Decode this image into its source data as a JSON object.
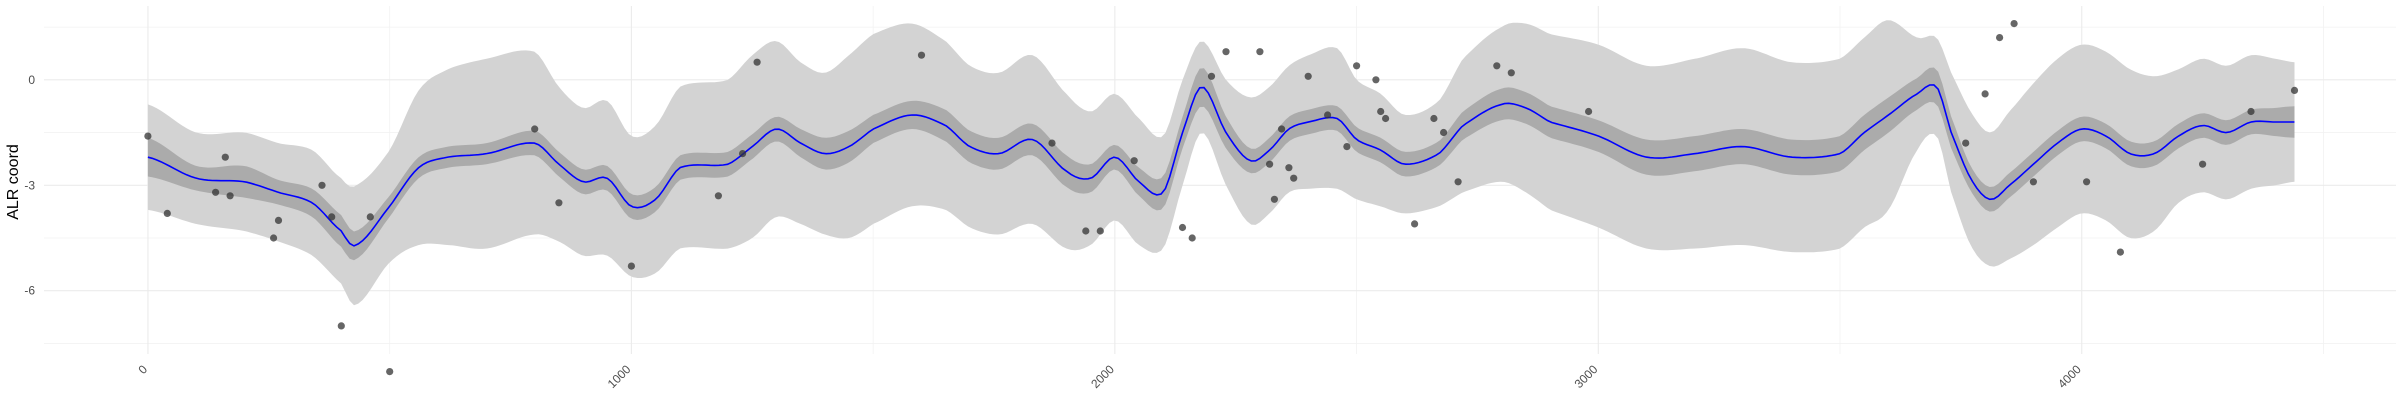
{
  "chart_data": {
    "type": "line",
    "title": "",
    "xlabel": "",
    "ylabel": "ALR coord",
    "xlim": [
      -215,
      4650
    ],
    "ylim": [
      -7.8,
      2.1
    ],
    "x_ticks": [
      0,
      1000,
      2000,
      3000,
      4000
    ],
    "x_tick_labels": [
      "0",
      "1000",
      "2000",
      "3000",
      "4000"
    ],
    "y_ticks": [
      0,
      -3,
      -6
    ],
    "y_tick_labels": [
      "0",
      "-3",
      "-6"
    ],
    "grid": true,
    "legend": "none",
    "smooth_color": "#0000ff",
    "inner_band_color": "#ababab",
    "outer_band_color": "#d3d3d3",
    "point_color": "#333333",
    "smooth": {
      "x": [
        0,
        100,
        200,
        270,
        340,
        400,
        430,
        500,
        560,
        620,
        700,
        800,
        850,
        900,
        950,
        1000,
        1050,
        1100,
        1200,
        1250,
        1300,
        1350,
        1400,
        1450,
        1500,
        1580,
        1650,
        1700,
        1760,
        1830,
        1900,
        1950,
        2000,
        2050,
        2100,
        2140,
        2180,
        2230,
        2280,
        2320,
        2360,
        2400,
        2460,
        2500,
        2550,
        2600,
        2670,
        2720,
        2800,
        2850,
        2900,
        3000,
        3100,
        3200,
        3300,
        3400,
        3500,
        3550,
        3600,
        3660,
        3700,
        3730,
        3770,
        3810,
        3850,
        3900,
        3950,
        4000,
        4050,
        4100,
        4150,
        4200,
        4250,
        4300,
        4350,
        4400,
        4440
      ],
      "y": [
        -2.2,
        -2.8,
        -2.9,
        -3.2,
        -3.5,
        -4.3,
        -4.7,
        -3.6,
        -2.5,
        -2.2,
        -2.1,
        -1.8,
        -2.4,
        -2.9,
        -2.8,
        -3.6,
        -3.4,
        -2.5,
        -2.4,
        -1.9,
        -1.4,
        -1.8,
        -2.1,
        -1.9,
        -1.4,
        -1.0,
        -1.3,
        -1.9,
        -2.1,
        -1.7,
        -2.6,
        -2.8,
        -2.2,
        -2.9,
        -3.2,
        -1.5,
        -0.2,
        -1.5,
        -2.3,
        -2.0,
        -1.4,
        -1.2,
        -1.1,
        -1.7,
        -2.0,
        -2.4,
        -2.1,
        -1.3,
        -0.7,
        -0.8,
        -1.2,
        -1.6,
        -2.2,
        -2.1,
        -1.9,
        -2.2,
        -2.1,
        -1.5,
        -1.0,
        -0.4,
        -0.2,
        -1.5,
        -2.8,
        -3.4,
        -3.0,
        -2.4,
        -1.8,
        -1.4,
        -1.6,
        -2.1,
        -2.1,
        -1.6,
        -1.3,
        -1.5,
        -1.2,
        -1.2,
        -1.2
      ],
      "inner_halfwidth": [
        0.55,
        0.35,
        0.45,
        0.35,
        0.4,
        0.45,
        0.4,
        0.3,
        0.3,
        0.3,
        0.3,
        0.35,
        0.35,
        0.35,
        0.35,
        0.35,
        0.35,
        0.35,
        0.35,
        0.35,
        0.35,
        0.4,
        0.45,
        0.45,
        0.4,
        0.4,
        0.45,
        0.45,
        0.45,
        0.45,
        0.45,
        0.4,
        0.35,
        0.4,
        0.45,
        0.45,
        0.55,
        0.45,
        0.35,
        0.35,
        0.35,
        0.35,
        0.35,
        0.35,
        0.35,
        0.35,
        0.35,
        0.4,
        0.45,
        0.45,
        0.45,
        0.45,
        0.5,
        0.5,
        0.5,
        0.5,
        0.5,
        0.5,
        0.5,
        0.45,
        0.5,
        0.45,
        0.35,
        0.35,
        0.35,
        0.35,
        0.35,
        0.35,
        0.35,
        0.35,
        0.35,
        0.35,
        0.35,
        0.35,
        0.35,
        0.4,
        0.45
      ],
      "outer_halfwidth": [
        1.5,
        1.3,
        1.4,
        1.4,
        1.5,
        1.5,
        1.7,
        1.6,
        2.2,
        2.5,
        2.7,
        2.6,
        2.2,
        2.1,
        2.2,
        2.0,
        2.1,
        2.3,
        2.4,
        2.6,
        2.5,
        2.3,
        2.3,
        2.6,
        2.7,
        2.6,
        2.4,
        2.3,
        2.3,
        2.4,
        2.2,
        1.9,
        1.8,
        1.8,
        1.6,
        1.5,
        1.3,
        1.5,
        1.8,
        1.8,
        1.8,
        1.9,
        2.0,
        1.7,
        1.6,
        1.4,
        1.5,
        1.9,
        2.2,
        2.4,
        2.5,
        2.6,
        2.6,
        2.7,
        2.8,
        2.7,
        2.7,
        2.7,
        2.7,
        1.6,
        1.4,
        1.7,
        1.9,
        1.9,
        2.1,
        2.3,
        2.4,
        2.4,
        2.4,
        2.4,
        2.2,
        1.9,
        1.9,
        1.9,
        1.9,
        1.8,
        1.7
      ]
    },
    "points": {
      "x": [
        0,
        40,
        140,
        160,
        170,
        260,
        270,
        360,
        380,
        400,
        460,
        500,
        800,
        850,
        1000,
        1180,
        1230,
        1260,
        1600,
        1870,
        1940,
        1970,
        2040,
        2140,
        2160,
        2200,
        2230,
        2300,
        2320,
        2330,
        2345,
        2360,
        2370,
        2400,
        2440,
        2480,
        2500,
        2540,
        2550,
        2560,
        2620,
        2660,
        2680,
        2710,
        2790,
        2820,
        2980,
        3760,
        3800,
        3830,
        3860,
        3900,
        4010,
        4080,
        4250,
        4350,
        4440
      ],
      "y": [
        -1.6,
        -3.8,
        -3.2,
        -2.2,
        -3.3,
        -4.5,
        -4.0,
        -3.0,
        -3.9,
        -7.0,
        -3.9,
        -8.3,
        -1.4,
        -3.5,
        -5.3,
        -3.3,
        -2.1,
        0.5,
        0.7,
        -1.8,
        -4.3,
        -4.3,
        -2.3,
        -4.2,
        -4.5,
        0.1,
        0.8,
        0.8,
        -2.4,
        -3.4,
        -1.4,
        -2.5,
        -2.8,
        0.1,
        -1.0,
        -1.9,
        0.4,
        0.0,
        -0.9,
        -1.1,
        -4.1,
        -1.1,
        -1.5,
        -2.9,
        0.4,
        0.2,
        -0.9,
        -1.8,
        -0.4,
        1.2,
        1.6,
        -2.9,
        -2.9,
        -4.9,
        -2.4,
        -0.9,
        -0.3
      ]
    }
  }
}
